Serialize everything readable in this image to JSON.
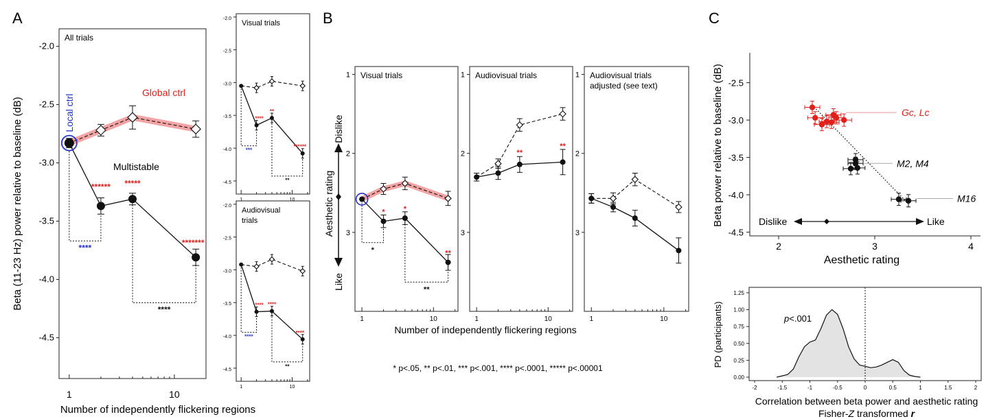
{
  "panel_letters": {
    "a": "A",
    "b": "B",
    "c": "C"
  },
  "colors": {
    "red": "#e0201b",
    "blue": "#2233cc",
    "band": "#f2a3a3",
    "black": "#111111",
    "kde_fill": "#e3e3e3"
  },
  "footnote": "* p<.05, ** p<.01, *** p<.001, **** p<.0001, ***** p<.00001",
  "chart_data": [
    {
      "id": "A-main",
      "type": "line",
      "title": "All trials",
      "xlabel": "Number of independently flickering regions",
      "ylabel": "Beta (11-23 Hz) power relative to baseline (dB)",
      "x_scale": "log",
      "xticks": [
        1,
        10
      ],
      "xlim": [
        0.8,
        20
      ],
      "ylim": [
        -4.85,
        -1.85
      ],
      "yticks": [
        -2.0,
        -2.5,
        -3.0,
        -3.5,
        -4.0,
        -4.5
      ],
      "y_inverted": true,
      "series": [
        {
          "name": "Global ctrl",
          "style": "dashed-open-diamond",
          "x": [
            1,
            2,
            4,
            16
          ],
          "values": [
            -2.83,
            -2.72,
            -2.61,
            -2.71
          ],
          "err": [
            0.04,
            0.05,
            0.1,
            0.07
          ]
        },
        {
          "name": "Multistable",
          "style": "solid-filled-circle",
          "x": [
            1,
            2,
            4,
            16
          ],
          "values": [
            -2.83,
            -3.37,
            -3.31,
            -3.81
          ],
          "err": [
            0.0,
            0.07,
            0.05,
            0.07
          ]
        }
      ],
      "annotations": {
        "local_ctrl": "Local ctrl",
        "sig_top": [
          "******",
          "*****",
          "*******"
        ],
        "sig_bottom": [
          "****",
          "****"
        ]
      }
    },
    {
      "id": "A-visual",
      "type": "line",
      "title": "Visual trials",
      "x_scale": "log",
      "ylim": [
        -1.95,
        -4.7
      ],
      "yticks": [
        -2.0,
        -2.5,
        -3.0,
        -3.5,
        -4.0,
        -4.5
      ],
      "series": [
        {
          "style": "dashed-open-diamond",
          "x": [
            1,
            2,
            4,
            16
          ],
          "values": [
            -3.05,
            -3.08,
            -2.98,
            -3.05
          ]
        },
        {
          "style": "solid-filled-circle",
          "x": [
            1,
            2,
            4,
            16
          ],
          "values": [
            -3.05,
            -3.65,
            -3.54,
            -4.08
          ]
        }
      ],
      "annotations": {
        "sig_top": [
          "****",
          "**",
          "******"
        ],
        "sig_bottom": [
          "***",
          "**"
        ]
      }
    },
    {
      "id": "A-audiovisual",
      "type": "line",
      "title": "Audiovisual trials",
      "x_scale": "log",
      "ylim": [
        -1.95,
        -4.7
      ],
      "yticks": [
        -2.0,
        -2.5,
        -3.0,
        -3.5,
        -4.0,
        -4.5
      ],
      "series": [
        {
          "style": "dashed-open-diamond",
          "x": [
            1,
            2,
            4,
            16
          ],
          "values": [
            -2.92,
            -2.95,
            -2.84,
            -3.02
          ]
        },
        {
          "style": "solid-filled-circle",
          "x": [
            1,
            2,
            4,
            16
          ],
          "values": [
            -2.92,
            -3.64,
            -3.63,
            -4.06
          ]
        }
      ],
      "annotations": {
        "sig_top": [
          "****",
          "****",
          "****"
        ],
        "sig_bottom": [
          "****",
          "**"
        ]
      }
    },
    {
      "id": "B-visual",
      "type": "line",
      "title": "Visual trials",
      "xlabel": "Number of independently flickering regions",
      "ylabel": "Aesthetic rating",
      "dislike": "Dislike",
      "like": "Like",
      "x_scale": "log",
      "xticks": [
        1,
        10
      ],
      "ylim": [
        0.9,
        4.0
      ],
      "yticks": [
        1,
        2,
        3
      ],
      "y_inverted": true,
      "series": [
        {
          "style": "dashed-open-diamond",
          "x": [
            1,
            2,
            4,
            16
          ],
          "values": [
            2.58,
            2.45,
            2.38,
            2.57
          ],
          "err": [
            0.0,
            0.07,
            0.08,
            0.09
          ]
        },
        {
          "style": "solid-filled-circle",
          "x": [
            1,
            2,
            4,
            16
          ],
          "values": [
            2.58,
            2.86,
            2.82,
            3.38
          ],
          "err": [
            0.0,
            0.08,
            0.08,
            0.1
          ]
        }
      ],
      "annotations": {
        "sig_top": [
          "*",
          "*",
          "**"
        ],
        "sig_bottom": [
          "*",
          "**"
        ]
      }
    },
    {
      "id": "B-audiovisual",
      "type": "line",
      "title": "Audiovisual trials",
      "x_scale": "log",
      "xticks": [
        1,
        10
      ],
      "ylim": [
        0.9,
        4.0
      ],
      "yticks": [
        1,
        2,
        3
      ],
      "series": [
        {
          "style": "dashed-open-diamond",
          "x": [
            1,
            2,
            4,
            16
          ],
          "values": [
            2.3,
            2.13,
            1.64,
            1.5
          ],
          "err": [
            0.05,
            0.06,
            0.08,
            0.08
          ]
        },
        {
          "style": "solid-filled-circle",
          "x": [
            1,
            2,
            4,
            16
          ],
          "values": [
            2.3,
            2.25,
            2.14,
            2.11
          ],
          "err": [
            0.05,
            0.08,
            0.1,
            0.16
          ]
        }
      ],
      "annotations": {
        "sig_top": [
          "**",
          "**"
        ]
      }
    },
    {
      "id": "B-adjusted",
      "type": "line",
      "title": "Audiovisual trials adjusted (see text)",
      "x_scale": "log",
      "xticks": [
        1,
        10
      ],
      "ylim": [
        0.9,
        4.0
      ],
      "yticks": [
        1,
        2,
        3
      ],
      "series": [
        {
          "style": "dashed-open-diamond",
          "x": [
            1,
            2,
            4,
            16
          ],
          "values": [
            2.57,
            2.57,
            2.33,
            2.68
          ],
          "err": [
            0.06,
            0.07,
            0.08,
            0.07
          ]
        },
        {
          "style": "solid-filled-circle",
          "x": [
            1,
            2,
            4,
            16
          ],
          "values": [
            2.57,
            2.68,
            2.82,
            3.23
          ],
          "err": [
            0.06,
            0.06,
            0.1,
            0.16
          ]
        }
      ]
    },
    {
      "id": "C-scatter",
      "type": "scatter",
      "xlabel": "Aesthetic rating",
      "ylabel": "Beta power relative to baseline (dB)",
      "xlim": [
        1.7,
        4.1
      ],
      "xticks": [
        2,
        3,
        4
      ],
      "ylim": [
        -4.55,
        -2.1
      ],
      "yticks": [
        -2.5,
        -3.0,
        -3.5,
        -4.0,
        -4.5
      ],
      "y_inverted": true,
      "labels": {
        "gc_lc": "Gc, Lc",
        "m2_m4": "M2, M4",
        "m16": "M16",
        "dislike": "Dislike",
        "like": "Like"
      },
      "groups": [
        {
          "name": "Gc, Lc",
          "color": "#e0201b",
          "x": [
            2.35,
            2.38,
            2.45,
            2.5,
            2.57,
            2.6,
            2.55,
            2.68
          ],
          "y": [
            -2.83,
            -2.97,
            -3.06,
            -3.02,
            -2.93,
            -2.97,
            -3.03,
            -3.0
          ]
        },
        {
          "name": "M2, M4",
          "color": "#111111",
          "x": [
            2.8,
            2.75,
            2.82,
            2.8
          ],
          "y": [
            -3.53,
            -3.65,
            -3.64,
            -3.58
          ]
        },
        {
          "name": "M16",
          "color": "#111111",
          "x": [
            3.25,
            3.35
          ],
          "y": [
            -4.06,
            -4.08
          ]
        }
      ],
      "trend": {
        "x": [
          2.35,
          3.35
        ],
        "y": [
          -2.8,
          -4.12
        ]
      }
    },
    {
      "id": "C-density",
      "type": "area",
      "xlabel": "Correlation between beta power and aesthetic rating",
      "xlabel2_pre": "Fisher-",
      "xlabel2_z": "Z",
      "xlabel2_mid": " transformed ",
      "xlabel2_r": "r",
      "ylabel": "PD (participants)",
      "annotation_p": "p",
      "annotation_val": "<.001",
      "xlim": [
        -2.1,
        2.1
      ],
      "xticks": [
        -2,
        -1.5,
        -1,
        -0.5,
        0,
        0.5,
        1,
        1.5,
        2
      ],
      "ylim": [
        0,
        1.3
      ],
      "yticks": [
        0.0,
        0.25,
        0.5,
        0.75,
        1.0,
        1.25
      ],
      "x": [
        -1.6,
        -1.4,
        -1.3,
        -1.2,
        -1.1,
        -1.0,
        -0.9,
        -0.8,
        -0.7,
        -0.6,
        -0.5,
        -0.4,
        -0.3,
        -0.2,
        -0.1,
        0.0,
        0.1,
        0.2,
        0.3,
        0.4,
        0.5,
        0.6,
        0.7,
        0.8,
        0.9,
        1.0
      ],
      "values": [
        0.0,
        0.04,
        0.12,
        0.3,
        0.45,
        0.52,
        0.55,
        0.72,
        0.92,
        1.0,
        0.93,
        0.72,
        0.45,
        0.27,
        0.18,
        0.16,
        0.14,
        0.15,
        0.18,
        0.22,
        0.26,
        0.22,
        0.1,
        0.03,
        0.01,
        0.0
      ]
    }
  ]
}
